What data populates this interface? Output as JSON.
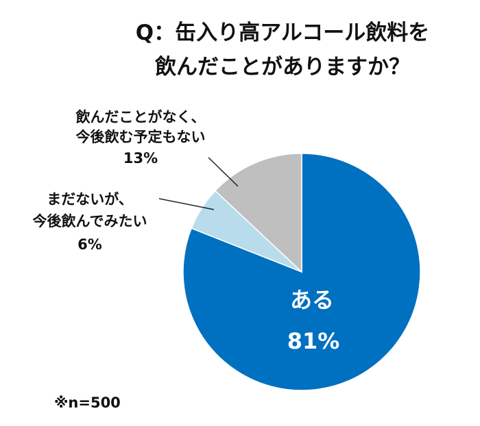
{
  "chart_data": {
    "type": "pie",
    "title_lines": [
      "Q：缶入り高アルコール飲料を",
      "飲んだことがありますか？"
    ],
    "slices": [
      {
        "label_lines": [
          "ある"
        ],
        "value": 81,
        "value_label": "81%",
        "color": "#0070c0"
      },
      {
        "label_lines": [
          "まだないが、",
          "今後飲んでみたい"
        ],
        "value": 6,
        "value_label": "6%",
        "color": "#b8dcec"
      },
      {
        "label_lines": [
          "飲んだことがなく、",
          "今後飲む予定もない"
        ],
        "value": 13,
        "value_label": "13%",
        "color": "#bfbfbf"
      }
    ],
    "note": "※n=500"
  }
}
